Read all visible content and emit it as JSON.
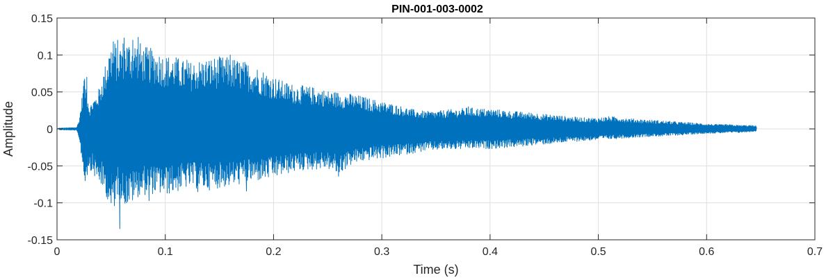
{
  "chart_data": {
    "type": "line",
    "title": "PIN-001-003-0002",
    "xlabel": "Time (s)",
    "ylabel": "Amplitude",
    "xlim": [
      0,
      0.7
    ],
    "ylim": [
      -0.15,
      0.15
    ],
    "grid": true,
    "line_color": "#0072BD",
    "xticks": [
      0,
      0.1,
      0.2,
      0.3,
      0.4,
      0.5,
      0.6,
      0.7
    ],
    "xtick_labels": [
      "0",
      "0.1",
      "0.2",
      "0.3",
      "0.4",
      "0.5",
      "0.6",
      "0.7"
    ],
    "yticks": [
      0.15,
      0.1,
      0.05,
      0,
      -0.05,
      -0.1,
      -0.15
    ],
    "ytick_labels": [
      "0.15",
      "0.1",
      "0.05",
      "0",
      "-0.05",
      "-0.1",
      "-0.15"
    ],
    "series": [
      {
        "envelope": {
          "t": [
            0,
            0.018,
            0.02,
            0.022,
            0.025,
            0.027,
            0.03,
            0.033,
            0.036,
            0.04,
            0.045,
            0.05,
            0.053,
            0.056,
            0.06,
            0.065,
            0.07,
            0.075,
            0.08,
            0.09,
            0.1,
            0.11,
            0.12,
            0.13,
            0.14,
            0.15,
            0.16,
            0.17,
            0.18,
            0.19,
            0.2,
            0.21,
            0.22,
            0.23,
            0.24,
            0.25,
            0.26,
            0.27,
            0.28,
            0.29,
            0.3,
            0.31,
            0.32,
            0.33,
            0.34,
            0.35,
            0.36,
            0.37,
            0.38,
            0.39,
            0.4,
            0.41,
            0.42,
            0.43,
            0.44,
            0.45,
            0.46,
            0.47,
            0.48,
            0.49,
            0.5,
            0.51,
            0.52,
            0.53,
            0.54,
            0.55,
            0.56,
            0.57,
            0.58,
            0.59,
            0.6,
            0.61,
            0.62,
            0.63,
            0.64,
            0.646
          ],
          "upper": [
            0.001,
            0.002,
            0.01,
            0.03,
            0.07,
            0.06,
            0.03,
            0.04,
            0.045,
            0.06,
            0.09,
            0.115,
            0.12,
            0.11,
            0.12,
            0.12,
            0.118,
            0.12,
            0.112,
            0.108,
            0.1,
            0.098,
            0.09,
            0.093,
            0.096,
            0.098,
            0.097,
            0.093,
            0.088,
            0.08,
            0.071,
            0.064,
            0.06,
            0.058,
            0.056,
            0.052,
            0.05,
            0.048,
            0.045,
            0.041,
            0.037,
            0.034,
            0.03,
            0.026,
            0.024,
            0.024,
            0.026,
            0.027,
            0.029,
            0.028,
            0.027,
            0.026,
            0.024,
            0.023,
            0.022,
            0.02,
            0.019,
            0.017,
            0.016,
            0.015,
            0.015,
            0.017,
            0.016,
            0.014,
            0.013,
            0.012,
            0.011,
            0.01,
            0.009,
            0.008,
            0.007,
            0.006,
            0.006,
            0.005,
            0.005,
            0.004
          ],
          "lower": [
            -0.001,
            -0.002,
            -0.01,
            -0.03,
            -0.07,
            -0.06,
            -0.05,
            -0.06,
            -0.07,
            -0.075,
            -0.09,
            -0.107,
            -0.1,
            -0.09,
            -0.1,
            -0.105,
            -0.1,
            -0.092,
            -0.09,
            -0.088,
            -0.09,
            -0.086,
            -0.08,
            -0.081,
            -0.083,
            -0.08,
            -0.078,
            -0.075,
            -0.072,
            -0.07,
            -0.067,
            -0.062,
            -0.058,
            -0.056,
            -0.055,
            -0.054,
            -0.063,
            -0.05,
            -0.045,
            -0.042,
            -0.04,
            -0.038,
            -0.035,
            -0.033,
            -0.03,
            -0.029,
            -0.028,
            -0.028,
            -0.027,
            -0.027,
            -0.027,
            -0.026,
            -0.025,
            -0.024,
            -0.022,
            -0.021,
            -0.02,
            -0.018,
            -0.017,
            -0.016,
            -0.015,
            -0.014,
            -0.013,
            -0.012,
            -0.011,
            -0.01,
            -0.01,
            -0.009,
            -0.008,
            -0.007,
            -0.006,
            -0.006,
            -0.005,
            -0.005,
            -0.004,
            -0.003
          ]
        },
        "spikes": [
          {
            "t": 0.025,
            "y": 0.065
          },
          {
            "t": 0.026,
            "y": -0.07
          },
          {
            "t": 0.0275,
            "y": 0.07
          },
          {
            "t": 0.028,
            "y": -0.062
          },
          {
            "t": 0.031,
            "y": -0.056
          },
          {
            "t": 0.037,
            "y": 0.02
          },
          {
            "t": 0.042,
            "y": -0.075
          },
          {
            "t": 0.046,
            "y": -0.085
          },
          {
            "t": 0.048,
            "y": 0.095
          },
          {
            "t": 0.05,
            "y": -0.1
          },
          {
            "t": 0.052,
            "y": 0.118
          },
          {
            "t": 0.053,
            "y": -0.104
          },
          {
            "t": 0.056,
            "y": 0.12
          },
          {
            "t": 0.058,
            "y": -0.135
          },
          {
            "t": 0.062,
            "y": 0.123
          },
          {
            "t": 0.07,
            "y": 0.12
          },
          {
            "t": 0.075,
            "y": 0.124
          },
          {
            "t": 0.085,
            "y": -0.097
          },
          {
            "t": 0.12,
            "y": 0.093
          },
          {
            "t": 0.13,
            "y": -0.085
          },
          {
            "t": 0.16,
            "y": 0.1
          },
          {
            "t": 0.175,
            "y": -0.084
          },
          {
            "t": 0.26,
            "y": -0.064
          },
          {
            "t": 0.38,
            "y": 0.03
          }
        ]
      }
    ]
  }
}
